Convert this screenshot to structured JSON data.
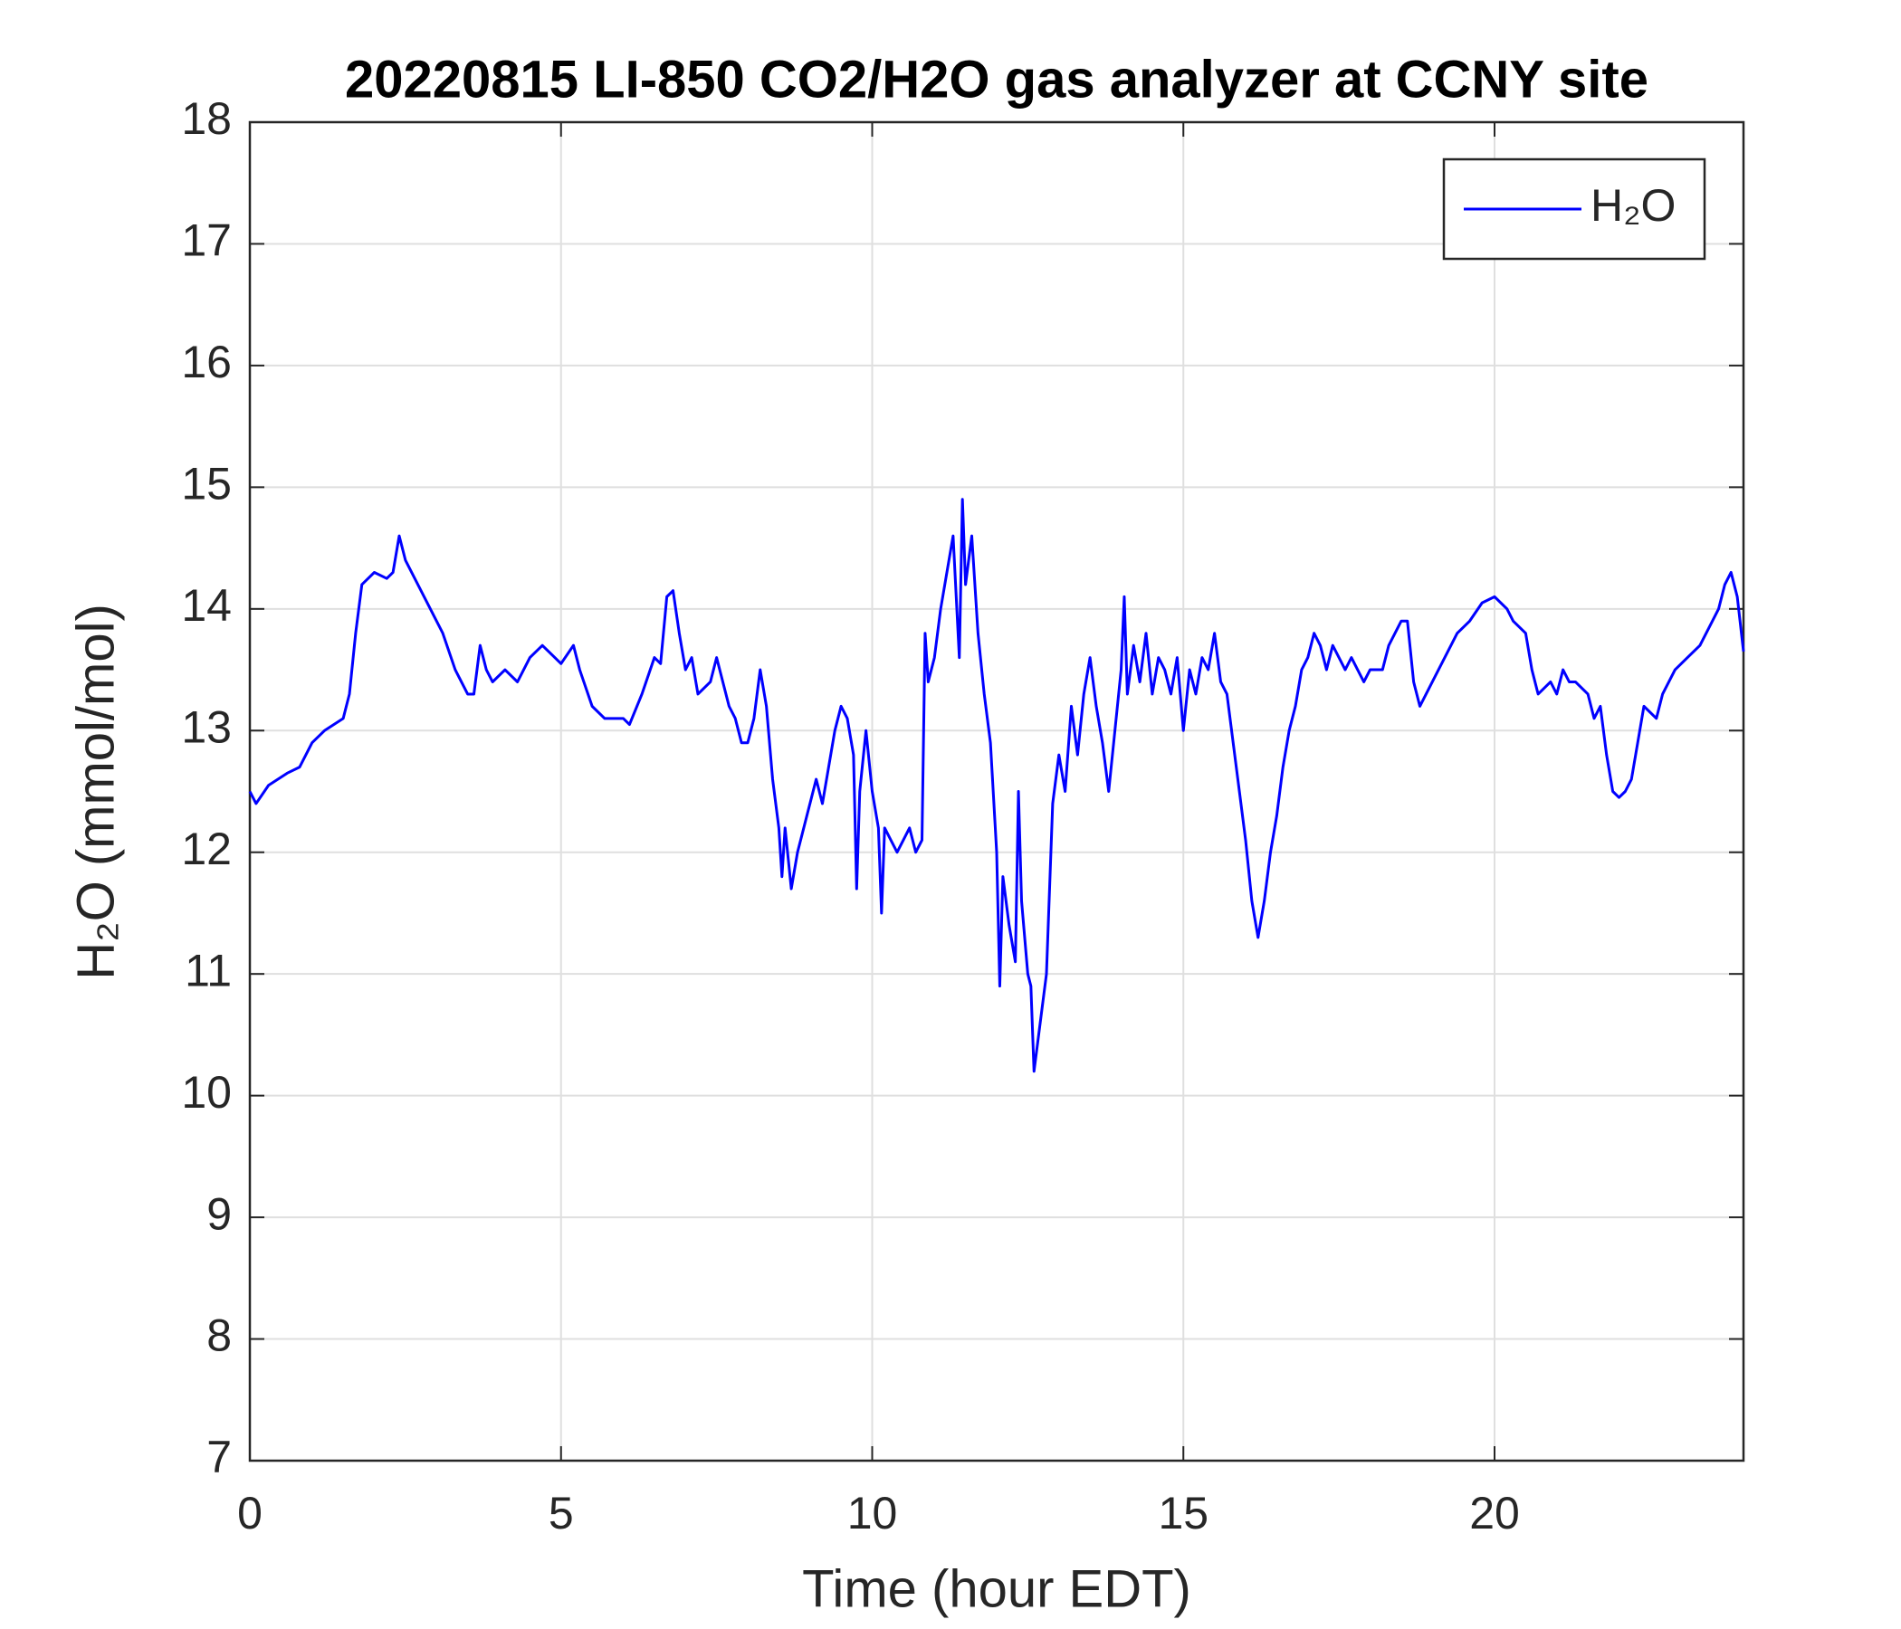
{
  "chart_data": {
    "type": "line",
    "title": "20220815 LI-850 CO2/H2O gas analyzer at CCNY site",
    "xlabel": "Time (hour EDT)",
    "ylabel": "H₂O (mmol/mol)",
    "x": [
      0,
      0.1,
      0.3,
      0.6,
      0.8,
      1.0,
      1.2,
      1.5,
      1.6,
      1.7,
      1.8,
      2.0,
      2.2,
      2.3,
      2.4,
      2.5,
      2.7,
      2.9,
      3.1,
      3.3,
      3.5,
      3.6,
      3.7,
      3.8,
      3.9,
      4.1,
      4.3,
      4.5,
      4.7,
      4.9,
      5.0,
      5.2,
      5.3,
      5.5,
      5.7,
      6.0,
      6.1,
      6.3,
      6.5,
      6.6,
      6.7,
      6.8,
      6.9,
      7.0,
      7.1,
      7.2,
      7.4,
      7.5,
      7.6,
      7.7,
      7.8,
      7.9,
      8.0,
      8.1,
      8.2,
      8.3,
      8.4,
      8.5,
      8.55,
      8.6,
      8.7,
      8.8,
      8.9,
      9.0,
      9.1,
      9.2,
      9.3,
      9.4,
      9.5,
      9.6,
      9.7,
      9.75,
      9.8,
      9.9,
      10.0,
      10.1,
      10.15,
      10.2,
      10.3,
      10.4,
      10.5,
      10.6,
      10.7,
      10.8,
      10.85,
      10.9,
      11.0,
      11.1,
      11.2,
      11.3,
      11.4,
      11.45,
      11.5,
      11.6,
      11.7,
      11.8,
      11.9,
      12.0,
      12.05,
      12.1,
      12.2,
      12.3,
      12.35,
      12.4,
      12.5,
      12.55,
      12.6,
      12.7,
      12.8,
      12.9,
      13.0,
      13.1,
      13.2,
      13.3,
      13.4,
      13.5,
      13.6,
      13.7,
      13.8,
      13.9,
      14.0,
      14.05,
      14.1,
      14.2,
      14.3,
      14.4,
      14.5,
      14.6,
      14.7,
      14.8,
      14.9,
      15.0,
      15.1,
      15.2,
      15.3,
      15.4,
      15.5,
      15.6,
      15.7,
      15.8,
      15.9,
      16.0,
      16.1,
      16.2,
      16.3,
      16.4,
      16.5,
      16.6,
      16.7,
      16.8,
      16.9,
      17.0,
      17.1,
      17.2,
      17.3,
      17.4,
      17.5,
      17.6,
      17.7,
      17.8,
      17.9,
      18.0,
      18.2,
      18.3,
      18.5,
      18.6,
      18.7,
      18.8,
      18.9,
      19.0,
      19.2,
      19.4,
      19.6,
      19.8,
      20.0,
      20.2,
      20.3,
      20.5,
      20.6,
      20.7,
      20.9,
      21.0,
      21.1,
      21.2,
      21.3,
      21.5,
      21.6,
      21.7,
      21.8,
      21.9,
      22.0,
      22.1,
      22.2,
      22.3,
      22.4,
      22.6,
      22.7,
      22.9,
      23.1,
      23.3,
      23.5,
      23.6,
      23.7,
      23.8,
      23.9,
      24.0
    ],
    "series": [
      {
        "name": "H₂O",
        "color": "#0000ff",
        "values": [
          12.5,
          12.4,
          12.55,
          12.65,
          12.7,
          12.9,
          13.0,
          13.1,
          13.3,
          13.8,
          14.2,
          14.3,
          14.25,
          14.3,
          14.6,
          14.4,
          14.2,
          14.0,
          13.8,
          13.5,
          13.3,
          13.3,
          13.7,
          13.5,
          13.4,
          13.5,
          13.4,
          13.6,
          13.7,
          13.6,
          13.55,
          13.7,
          13.5,
          13.2,
          13.1,
          13.1,
          13.05,
          13.3,
          13.6,
          13.55,
          14.1,
          14.15,
          13.8,
          13.5,
          13.6,
          13.3,
          13.4,
          13.6,
          13.4,
          13.2,
          13.1,
          12.9,
          12.9,
          13.1,
          13.5,
          13.2,
          12.6,
          12.2,
          11.8,
          12.2,
          11.7,
          12.0,
          12.2,
          12.4,
          12.6,
          12.4,
          12.7,
          13.0,
          13.2,
          13.1,
          12.8,
          11.7,
          12.5,
          13.0,
          12.5,
          12.2,
          11.5,
          12.2,
          12.1,
          12.0,
          12.1,
          12.2,
          12.0,
          12.1,
          13.8,
          13.4,
          13.6,
          14.0,
          14.3,
          14.6,
          13.6,
          14.9,
          14.2,
          14.6,
          13.8,
          13.3,
          12.9,
          12.0,
          10.9,
          11.8,
          11.4,
          11.1,
          12.5,
          11.6,
          11.0,
          10.9,
          10.2,
          10.6,
          11.0,
          12.4,
          12.8,
          12.5,
          13.2,
          12.8,
          13.3,
          13.6,
          13.2,
          12.9,
          12.5,
          13.0,
          13.5,
          14.1,
          13.3,
          13.7,
          13.4,
          13.8,
          13.3,
          13.6,
          13.5,
          13.3,
          13.6,
          13.0,
          13.5,
          13.3,
          13.6,
          13.5,
          13.8,
          13.4,
          13.3,
          12.9,
          12.5,
          12.1,
          11.6,
          11.3,
          11.6,
          12.0,
          12.3,
          12.7,
          13.0,
          13.2,
          13.5,
          13.6,
          13.8,
          13.7,
          13.5,
          13.7,
          13.6,
          13.5,
          13.6,
          13.5,
          13.4,
          13.5,
          13.5,
          13.7,
          13.9,
          13.9,
          13.4,
          13.2,
          13.3,
          13.4,
          13.6,
          13.8,
          13.9,
          14.05,
          14.1,
          14.0,
          13.9,
          13.8,
          13.5,
          13.3,
          13.4,
          13.3,
          13.5,
          13.4,
          13.4,
          13.3,
          13.1,
          13.2,
          12.8,
          12.5,
          12.45,
          12.5,
          12.6,
          12.9,
          13.2,
          13.1,
          13.3,
          13.5,
          13.6,
          13.7,
          13.9,
          14.0,
          14.2,
          14.3,
          14.1,
          13.65
        ]
      }
    ],
    "xlim": [
      0,
      24
    ],
    "xticks": [
      0,
      5,
      10,
      15,
      20
    ],
    "ylim": [
      7,
      18
    ],
    "yticks": [
      7,
      8,
      9,
      10,
      11,
      12,
      13,
      14,
      15,
      16,
      17,
      18
    ],
    "grid": true,
    "legend": "upper right"
  }
}
